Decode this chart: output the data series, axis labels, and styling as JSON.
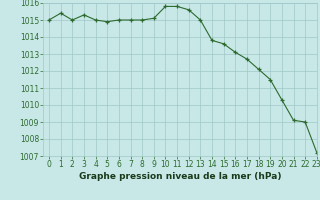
{
  "x": [
    0,
    1,
    2,
    3,
    4,
    5,
    6,
    7,
    8,
    9,
    10,
    11,
    12,
    13,
    14,
    15,
    16,
    17,
    18,
    19,
    20,
    21,
    22,
    23
  ],
  "y": [
    1015.0,
    1015.4,
    1015.0,
    1015.3,
    1015.0,
    1014.9,
    1015.0,
    1015.0,
    1015.0,
    1015.1,
    1015.8,
    1015.8,
    1015.6,
    1015.0,
    1013.8,
    1013.6,
    1013.1,
    1012.7,
    1012.1,
    1011.5,
    1010.3,
    1009.1,
    1009.0,
    1007.2
  ],
  "line_color": "#2d6a2d",
  "marker": "+",
  "bg_color": "#c8e8e8",
  "grid_color": "#a0c8c8",
  "xlabel": "Graphe pression niveau de la mer (hPa)",
  "xlabel_color": "#1a3a1a",
  "ylim": [
    1007,
    1016
  ],
  "xlim": [
    -0.5,
    23
  ],
  "yticks": [
    1007,
    1008,
    1009,
    1010,
    1011,
    1012,
    1013,
    1014,
    1015,
    1016
  ],
  "xticks": [
    0,
    1,
    2,
    3,
    4,
    5,
    6,
    7,
    8,
    9,
    10,
    11,
    12,
    13,
    14,
    15,
    16,
    17,
    18,
    19,
    20,
    21,
    22,
    23
  ],
  "tick_color": "#2d6a2d",
  "tick_fontsize": 5.5,
  "xlabel_fontsize": 6.5
}
